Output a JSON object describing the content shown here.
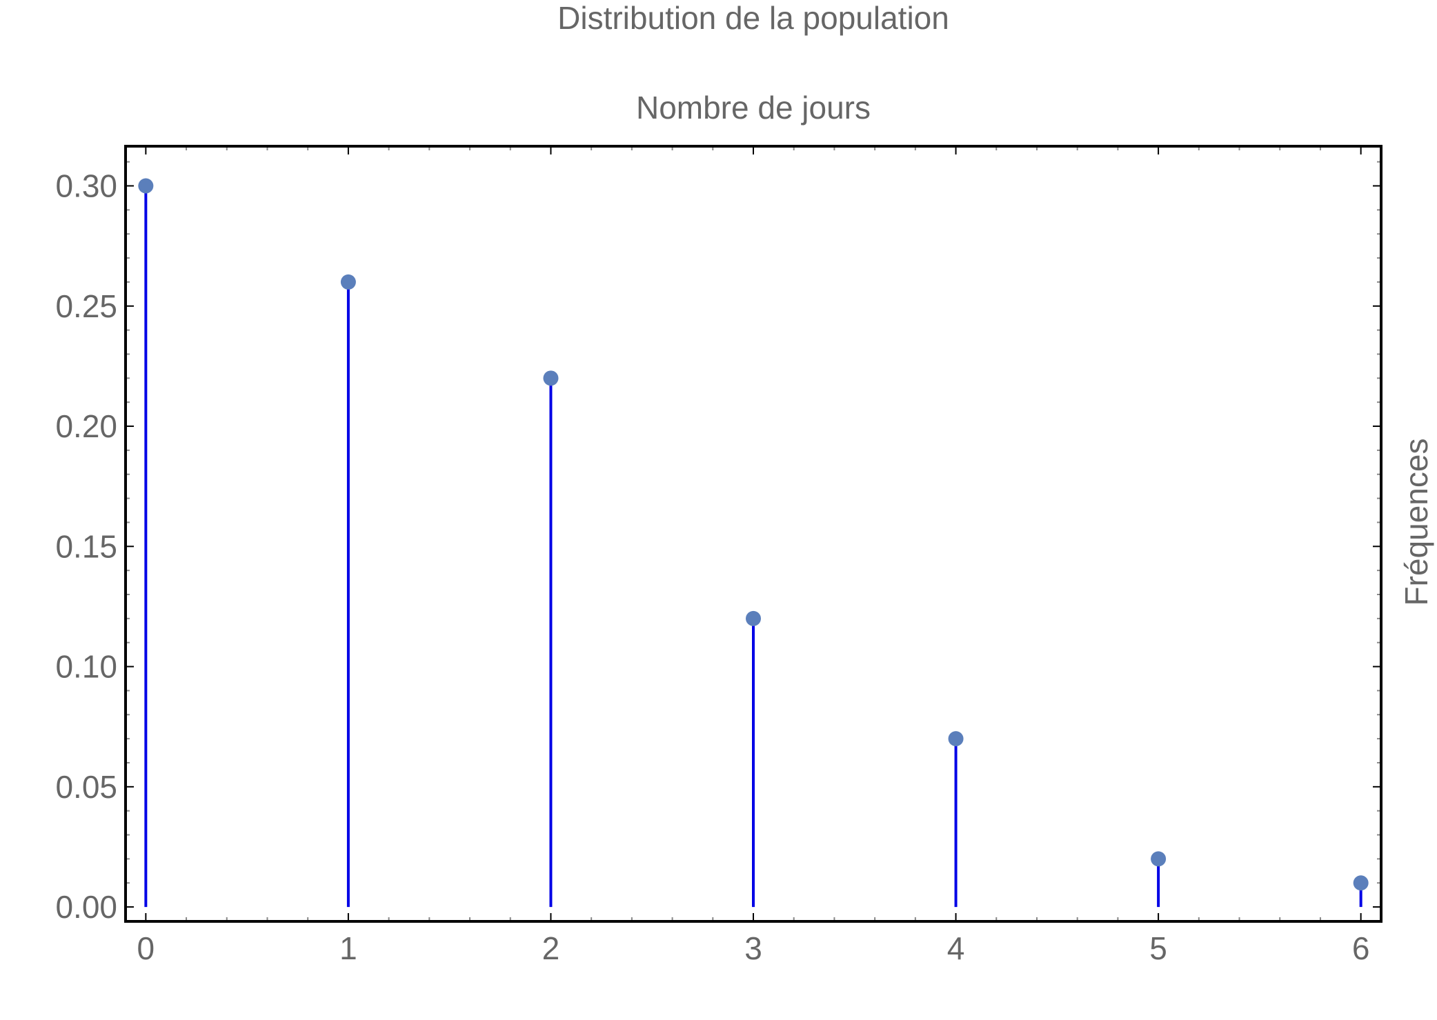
{
  "chart_data": {
    "type": "stem",
    "title": "Distribution de la population",
    "xlabel": "Nombre de jours",
    "ylabel": "Fréquences",
    "x": [
      0,
      1,
      2,
      3,
      4,
      5,
      6
    ],
    "values": [
      0.3,
      0.26,
      0.22,
      0.12,
      0.07,
      0.02,
      0.01
    ],
    "xlim": [
      -0.1,
      6.1
    ],
    "ylim": [
      -0.006,
      0.3165
    ],
    "xticks": [
      0,
      1,
      2,
      3,
      4,
      5,
      6
    ],
    "xtick_labels": [
      "0",
      "1",
      "2",
      "3",
      "4",
      "5",
      "6"
    ],
    "yticks": [
      0.0,
      0.05,
      0.1,
      0.15,
      0.2,
      0.25,
      0.3
    ],
    "ytick_labels": [
      "0.00",
      "0.05",
      "0.10",
      "0.15",
      "0.20",
      "0.25",
      "0.30"
    ],
    "grid": false,
    "frame": true,
    "colors": {
      "stem": "#0000e6",
      "marker": "#5b7fbb",
      "frame": "#000000",
      "text": "#666666"
    }
  }
}
